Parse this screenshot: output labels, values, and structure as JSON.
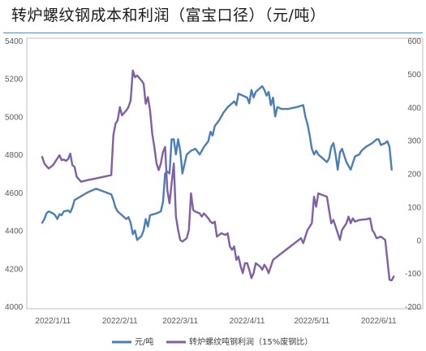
{
  "title": "转炉螺纹钢成本和利润（富宝口径）（元/吨）",
  "colors": {
    "cost": "#4a7ebb",
    "profit": "#7f5fa6",
    "frame": "#bfbfbf",
    "rule": "#5b8cc7"
  },
  "chart_data": {
    "type": "line",
    "title": "转炉螺纹钢成本和利润（富宝口径）（元/吨）",
    "grid": false,
    "legend_position": "bottom",
    "x_tick_labels": [
      "2022/1/11",
      "2022/2/11",
      "2022/3/11",
      "2022/4/11",
      "2022/5/11",
      "2022/6/11"
    ],
    "x_tick_dates": [
      "2022-01-11",
      "2022-02-11",
      "2022-03-11",
      "2022-04-11",
      "2022-05-11",
      "2022-06-11"
    ],
    "xlim": [
      "2022-01-06",
      "2022-06-19"
    ],
    "y_left": {
      "ylim": [
        4000,
        5400
      ],
      "ticks": [
        "5400",
        "5200",
        "5000",
        "4800",
        "4600",
        "4400",
        "4200",
        "4000"
      ]
    },
    "y_right": {
      "ylim": [
        -200,
        600
      ],
      "ticks": [
        "600",
        "500",
        "400",
        "300",
        "200",
        "100",
        "0",
        "-100",
        "-200"
      ]
    },
    "series": [
      {
        "name": "元/吨",
        "axis": "left",
        "color": "#4a7ebb",
        "points": [
          [
            "2022-01-06",
            4440
          ],
          [
            "2022-01-07",
            4460
          ],
          [
            "2022-01-08",
            4490
          ],
          [
            "2022-01-09",
            4500
          ],
          [
            "2022-01-10",
            4495
          ],
          [
            "2022-01-11",
            4490
          ],
          [
            "2022-01-12",
            4480
          ],
          [
            "2022-01-13",
            4460
          ],
          [
            "2022-01-14",
            4485
          ],
          [
            "2022-01-15",
            4480
          ],
          [
            "2022-01-16",
            4500
          ],
          [
            "2022-01-18",
            4505
          ],
          [
            "2022-01-19",
            4495
          ],
          [
            "2022-01-20",
            4520
          ],
          [
            "2022-01-21",
            4560
          ],
          [
            "2022-01-24",
            4580
          ],
          [
            "2022-01-27",
            4600
          ],
          [
            "2022-01-31",
            4620
          ],
          [
            "2022-02-07",
            4590
          ],
          [
            "2022-02-08",
            4560
          ],
          [
            "2022-02-09",
            4520
          ],
          [
            "2022-02-10",
            4500
          ],
          [
            "2022-02-11",
            4490
          ],
          [
            "2022-02-14",
            4460
          ],
          [
            "2022-02-15",
            4470
          ],
          [
            "2022-02-16",
            4440
          ],
          [
            "2022-02-17",
            4380
          ],
          [
            "2022-02-18",
            4400
          ],
          [
            "2022-02-19",
            4350
          ],
          [
            "2022-02-21",
            4370
          ],
          [
            "2022-02-22",
            4400
          ],
          [
            "2022-02-23",
            4460
          ],
          [
            "2022-02-24",
            4420
          ],
          [
            "2022-02-25",
            4480
          ],
          [
            "2022-02-28",
            4490
          ],
          [
            "2022-03-02",
            4500
          ],
          [
            "2022-03-03",
            4550
          ],
          [
            "2022-03-04",
            4700
          ],
          [
            "2022-03-05",
            4710
          ],
          [
            "2022-03-06",
            4700
          ],
          [
            "2022-03-07",
            4880
          ],
          [
            "2022-03-08",
            4880
          ],
          [
            "2022-03-09",
            4800
          ],
          [
            "2022-03-10",
            4880
          ],
          [
            "2022-03-11",
            4820
          ],
          [
            "2022-03-12",
            4700
          ],
          [
            "2022-03-14",
            4800
          ],
          [
            "2022-03-16",
            4820
          ],
          [
            "2022-03-18",
            4830
          ],
          [
            "2022-03-20",
            4800
          ],
          [
            "2022-03-22",
            4840
          ],
          [
            "2022-03-24",
            4870
          ],
          [
            "2022-03-25",
            4920
          ],
          [
            "2022-03-26",
            4900
          ],
          [
            "2022-03-27",
            4950
          ],
          [
            "2022-03-29",
            4980
          ],
          [
            "2022-03-31",
            5020
          ],
          [
            "2022-04-02",
            5050
          ],
          [
            "2022-04-04",
            5070
          ],
          [
            "2022-04-05",
            5080
          ],
          [
            "2022-04-06",
            5060
          ],
          [
            "2022-04-07",
            5120
          ],
          [
            "2022-04-09",
            5110
          ],
          [
            "2022-04-11",
            5100
          ],
          [
            "2022-04-12",
            5070
          ],
          [
            "2022-04-13",
            5140
          ],
          [
            "2022-04-14",
            5100
          ],
          [
            "2022-04-15",
            5130
          ],
          [
            "2022-04-17",
            5150
          ],
          [
            "2022-04-18",
            5160
          ],
          [
            "2022-04-19",
            5140
          ],
          [
            "2022-04-20",
            5110
          ],
          [
            "2022-04-21",
            5130
          ],
          [
            "2022-04-22",
            5060
          ],
          [
            "2022-04-23",
            5100
          ],
          [
            "2022-04-24",
            5000
          ],
          [
            "2022-04-25",
            5050
          ],
          [
            "2022-04-27",
            5040
          ],
          [
            "2022-04-30",
            5040
          ],
          [
            "2022-05-04",
            5050
          ],
          [
            "2022-05-07",
            5060
          ],
          [
            "2022-05-08",
            5000
          ],
          [
            "2022-05-09",
            4960
          ],
          [
            "2022-05-10",
            4900
          ],
          [
            "2022-05-11",
            4830
          ],
          [
            "2022-05-12",
            4800
          ],
          [
            "2022-05-13",
            4820
          ],
          [
            "2022-05-14",
            4800
          ],
          [
            "2022-05-16",
            4780
          ],
          [
            "2022-05-18",
            4760
          ],
          [
            "2022-05-19",
            4780
          ],
          [
            "2022-05-20",
            4840
          ],
          [
            "2022-05-21",
            4860
          ],
          [
            "2022-05-22",
            4800
          ],
          [
            "2022-05-23",
            4720
          ],
          [
            "2022-05-24",
            4810
          ],
          [
            "2022-05-25",
            4830
          ],
          [
            "2022-05-27",
            4760
          ],
          [
            "2022-05-29",
            4720
          ],
          [
            "2022-05-31",
            4790
          ],
          [
            "2022-06-02",
            4800
          ],
          [
            "2022-06-03",
            4820
          ],
          [
            "2022-06-05",
            4840
          ],
          [
            "2022-06-08",
            4860
          ],
          [
            "2022-06-10",
            4880
          ],
          [
            "2022-06-11",
            4880
          ],
          [
            "2022-06-12",
            4850
          ],
          [
            "2022-06-14",
            4860
          ],
          [
            "2022-06-15",
            4870
          ],
          [
            "2022-06-16",
            4840
          ],
          [
            "2022-06-17",
            4720
          ]
        ]
      },
      {
        "name": "转炉螺纹吨钢利润（15%废钢比）",
        "axis": "right",
        "color": "#7f5fa6",
        "points": [
          [
            "2022-01-06",
            250
          ],
          [
            "2022-01-07",
            230
          ],
          [
            "2022-01-08",
            222
          ],
          [
            "2022-01-09",
            215
          ],
          [
            "2022-01-11",
            225
          ],
          [
            "2022-01-12",
            235
          ],
          [
            "2022-01-13",
            245
          ],
          [
            "2022-01-14",
            255
          ],
          [
            "2022-01-15",
            240
          ],
          [
            "2022-01-16",
            242
          ],
          [
            "2022-01-17",
            238
          ],
          [
            "2022-01-18",
            243
          ],
          [
            "2022-01-19",
            260
          ],
          [
            "2022-01-20",
            225
          ],
          [
            "2022-01-21",
            220
          ],
          [
            "2022-01-22",
            190
          ],
          [
            "2022-01-24",
            175
          ],
          [
            "2022-01-27",
            180
          ],
          [
            "2022-01-31",
            185
          ],
          [
            "2022-02-07",
            195
          ],
          [
            "2022-02-08",
            315
          ],
          [
            "2022-02-09",
            350
          ],
          [
            "2022-02-10",
            360
          ],
          [
            "2022-02-11",
            400
          ],
          [
            "2022-02-12",
            375
          ],
          [
            "2022-02-14",
            390
          ],
          [
            "2022-02-15",
            400
          ],
          [
            "2022-02-16",
            420
          ],
          [
            "2022-02-17",
            510
          ],
          [
            "2022-02-18",
            490
          ],
          [
            "2022-02-19",
            495
          ],
          [
            "2022-02-21",
            480
          ],
          [
            "2022-02-22",
            470
          ],
          [
            "2022-02-23",
            410
          ],
          [
            "2022-02-24",
            430
          ],
          [
            "2022-02-25",
            390
          ],
          [
            "2022-02-26",
            320
          ],
          [
            "2022-02-27",
            280
          ],
          [
            "2022-02-28",
            230
          ],
          [
            "2022-03-01",
            210
          ],
          [
            "2022-03-02",
            230
          ],
          [
            "2022-03-03",
            265
          ],
          [
            "2022-03-04",
            280
          ],
          [
            "2022-03-05",
            150
          ],
          [
            "2022-03-06",
            110
          ],
          [
            "2022-03-07",
            170
          ],
          [
            "2022-03-08",
            230
          ],
          [
            "2022-03-09",
            70
          ],
          [
            "2022-03-10",
            30
          ],
          [
            "2022-03-11",
            0
          ],
          [
            "2022-03-12",
            -5
          ],
          [
            "2022-03-14",
            5
          ],
          [
            "2022-03-15",
            30
          ],
          [
            "2022-03-16",
            140
          ],
          [
            "2022-03-17",
            90
          ],
          [
            "2022-03-18",
            85
          ],
          [
            "2022-03-20",
            80
          ],
          [
            "2022-03-21",
            70
          ],
          [
            "2022-03-22",
            80
          ],
          [
            "2022-03-24",
            65
          ],
          [
            "2022-03-25",
            55
          ],
          [
            "2022-03-26",
            50
          ],
          [
            "2022-03-27",
            55
          ],
          [
            "2022-03-28",
            10
          ],
          [
            "2022-03-30",
            20
          ],
          [
            "2022-04-01",
            15
          ],
          [
            "2022-04-02",
            20
          ],
          [
            "2022-04-03",
            -20
          ],
          [
            "2022-04-04",
            -30
          ],
          [
            "2022-04-05",
            -20
          ],
          [
            "2022-04-06",
            -60
          ],
          [
            "2022-04-07",
            -50
          ],
          [
            "2022-04-08",
            -80
          ],
          [
            "2022-04-09",
            -100
          ],
          [
            "2022-04-10",
            -70
          ],
          [
            "2022-04-11",
            -70
          ],
          [
            "2022-04-12",
            -90
          ],
          [
            "2022-04-13",
            -115
          ],
          [
            "2022-04-14",
            -100
          ],
          [
            "2022-04-15",
            -70
          ],
          [
            "2022-04-17",
            -80
          ],
          [
            "2022-04-18",
            -90
          ],
          [
            "2022-04-19",
            -75
          ],
          [
            "2022-04-20",
            -85
          ],
          [
            "2022-04-21",
            -100
          ],
          [
            "2022-04-22",
            -80
          ],
          [
            "2022-04-23",
            -60
          ],
          [
            "2022-04-25",
            -50
          ],
          [
            "2022-04-27",
            -40
          ],
          [
            "2022-04-29",
            -30
          ],
          [
            "2022-05-01",
            -20
          ],
          [
            "2022-05-03",
            -10
          ],
          [
            "2022-05-06",
            5
          ],
          [
            "2022-05-07",
            -10
          ],
          [
            "2022-05-08",
            10
          ],
          [
            "2022-05-09",
            30
          ],
          [
            "2022-05-10",
            40
          ],
          [
            "2022-05-11",
            50
          ],
          [
            "2022-05-12",
            130
          ],
          [
            "2022-05-13",
            100
          ],
          [
            "2022-05-14",
            140
          ],
          [
            "2022-05-16",
            135
          ],
          [
            "2022-05-18",
            130
          ],
          [
            "2022-05-20",
            50
          ],
          [
            "2022-05-21",
            60
          ],
          [
            "2022-05-22",
            40
          ],
          [
            "2022-05-24",
            0
          ],
          [
            "2022-05-25",
            30
          ],
          [
            "2022-05-27",
            50
          ],
          [
            "2022-05-28",
            70
          ],
          [
            "2022-05-29",
            50
          ],
          [
            "2022-05-30",
            65
          ],
          [
            "2022-05-31",
            55
          ],
          [
            "2022-06-02",
            60
          ],
          [
            "2022-06-05",
            62
          ],
          [
            "2022-06-07",
            65
          ],
          [
            "2022-06-08",
            30
          ],
          [
            "2022-06-09",
            20
          ],
          [
            "2022-06-10",
            5
          ],
          [
            "2022-06-12",
            10
          ],
          [
            "2022-06-14",
            0
          ],
          [
            "2022-06-15",
            -60
          ],
          [
            "2022-06-16",
            -120
          ],
          [
            "2022-06-17",
            -122
          ],
          [
            "2022-06-18",
            -110
          ]
        ]
      }
    ]
  }
}
